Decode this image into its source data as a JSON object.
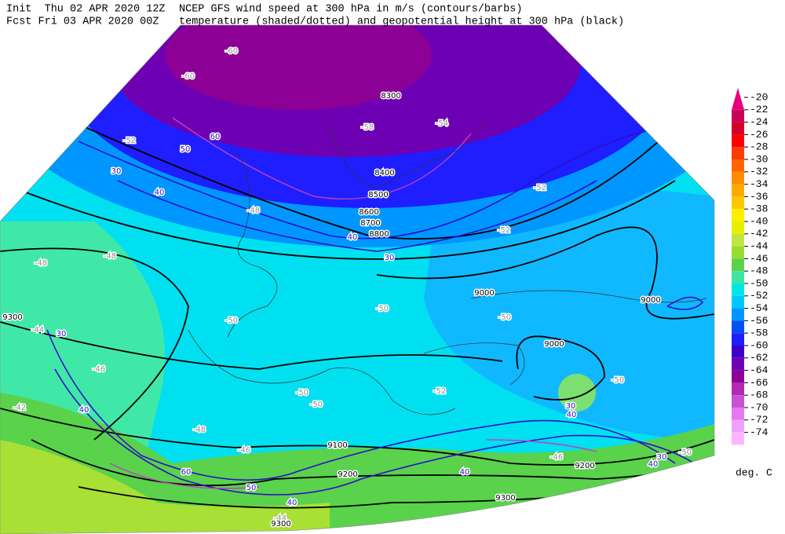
{
  "header": {
    "init": "Init  Thu 02 APR 2020 12Z",
    "fcst": "Fcst Fri 03 APR 2020 00Z",
    "title_line1": "NCEP GFS wind speed at 300 hPa in m/s (contours/barbs)",
    "title_line2": "temperature (shaded/dotted) and geopotential height at 300 hPa (black)"
  },
  "colorbar": {
    "levels": [
      -20,
      -22,
      -24,
      -26,
      -28,
      -30,
      -32,
      -34,
      -36,
      -38,
      -40,
      -42,
      -44,
      -46,
      -48,
      -50,
      -52,
      -54,
      -56,
      -58,
      -60,
      -62,
      -64,
      -66,
      -68,
      -70,
      -72,
      -74
    ],
    "colors": [
      "#e6007e",
      "#c8005a",
      "#d2002a",
      "#ff0000",
      "#ff3c00",
      "#ff6400",
      "#ff8c00",
      "#ffaa00",
      "#ffc800",
      "#ffee00",
      "#e6f000",
      "#c0e640",
      "#96dc32",
      "#5ad24b",
      "#3ce6a0",
      "#00e6e6",
      "#00c8ff",
      "#0096ff",
      "#0050f0",
      "#1e1eff",
      "#3c00c8",
      "#6e00b4",
      "#8c0096",
      "#b428b4",
      "#c850d2",
      "#e678f0",
      "#f0a0ff",
      "#ffb4ff"
    ],
    "unit": "deg. C"
  },
  "map": {
    "height_labels": [
      8300,
      8400,
      8500,
      8600,
      8700,
      8800,
      9000,
      9000,
      9000,
      9100,
      9200,
      9200,
      9300,
      9300,
      9300
    ],
    "wind_labels": [
      30,
      40,
      60,
      50,
      30,
      40,
      30,
      40,
      30,
      40,
      30,
      40,
      40,
      40,
      50,
      60
    ],
    "temp_labels": [
      -52,
      -48,
      -48,
      -46,
      -42,
      -44,
      -50,
      -50,
      -48,
      -46,
      -50,
      -50,
      -52,
      -52,
      -54,
      -58,
      -60,
      -60,
      -48,
      -50,
      -52,
      -50,
      -50,
      -46,
      -44
    ]
  }
}
